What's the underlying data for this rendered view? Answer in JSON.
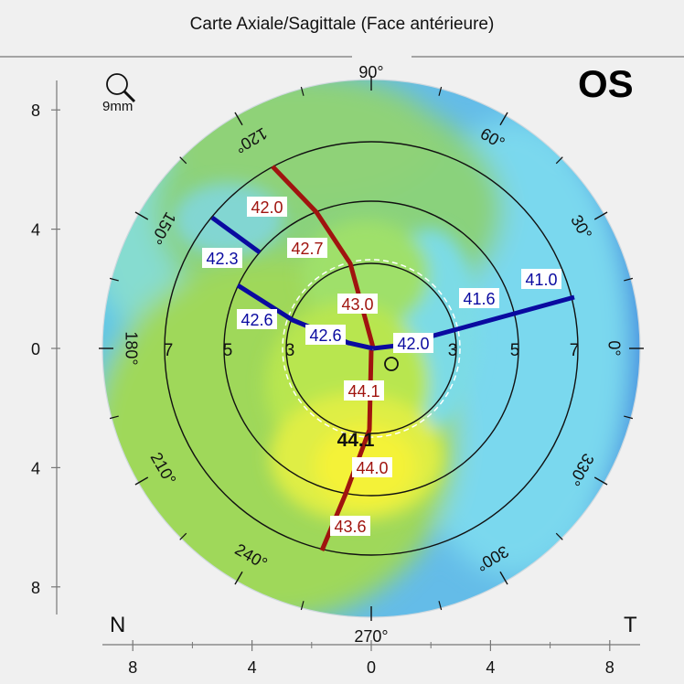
{
  "title": "Carte Axiale/Sagittale (Face antérieure)",
  "eye": "OS",
  "zoom_label": "9mm",
  "corner_left": "N",
  "corner_right": "T",
  "y_ticks": [
    {
      "value": 8,
      "label": "8"
    },
    {
      "value": 4,
      "label": "4"
    },
    {
      "value": 0,
      "label": "0"
    },
    {
      "value": -4,
      "label": "4"
    },
    {
      "value": -8,
      "label": "8"
    }
  ],
  "x_ticks": [
    {
      "value": -8,
      "label": "8"
    },
    {
      "value": -4,
      "label": "4"
    },
    {
      "value": 0,
      "label": "0"
    },
    {
      "value": 4,
      "label": "4"
    },
    {
      "value": 8,
      "label": "8"
    }
  ],
  "rings": [
    {
      "diameter": 3,
      "label": "3"
    },
    {
      "diameter": 5,
      "label": "5"
    },
    {
      "diameter": 7,
      "label": "7"
    }
  ],
  "angle_labels": [
    {
      "deg": 90,
      "label": "90°"
    },
    {
      "deg": 60,
      "label": "60°"
    },
    {
      "deg": 30,
      "label": "30°"
    },
    {
      "deg": 0,
      "label": "0°"
    },
    {
      "deg": 330,
      "label": "330°"
    },
    {
      "deg": 300,
      "label": "300°"
    },
    {
      "deg": 270,
      "label": "270°"
    },
    {
      "deg": 240,
      "label": "240°"
    },
    {
      "deg": 210,
      "label": "210°"
    },
    {
      "deg": 180,
      "label": "180°"
    },
    {
      "deg": 150,
      "label": "150°"
    },
    {
      "deg": 120,
      "label": "120°"
    }
  ],
  "center_value": "44.1",
  "steep_meridian": {
    "color": "#a0140f",
    "readings": [
      {
        "zone": 3,
        "value": "43.0",
        "side": "top"
      },
      {
        "zone": 5,
        "value": "42.7",
        "side": "top"
      },
      {
        "zone": 7,
        "value": "42.0",
        "side": "top"
      },
      {
        "zone": 3,
        "value": "44.1",
        "side": "bottom"
      },
      {
        "zone": 5,
        "value": "44.0",
        "side": "bottom"
      },
      {
        "zone": 7,
        "value": "43.6",
        "side": "bottom"
      }
    ]
  },
  "flat_meridian": {
    "color": "#0a0aa0",
    "readings": [
      {
        "zone": 3,
        "value": "42.0",
        "side": "right"
      },
      {
        "zone": 5,
        "value": "41.6",
        "side": "right"
      },
      {
        "zone": 7,
        "value": "41.0",
        "side": "right"
      },
      {
        "zone": 3,
        "value": "42.6",
        "side": "left"
      },
      {
        "zone": 5,
        "value": "42.6",
        "side": "left"
      },
      {
        "zone": 7,
        "value": "42.3",
        "side": "left"
      }
    ]
  }
}
